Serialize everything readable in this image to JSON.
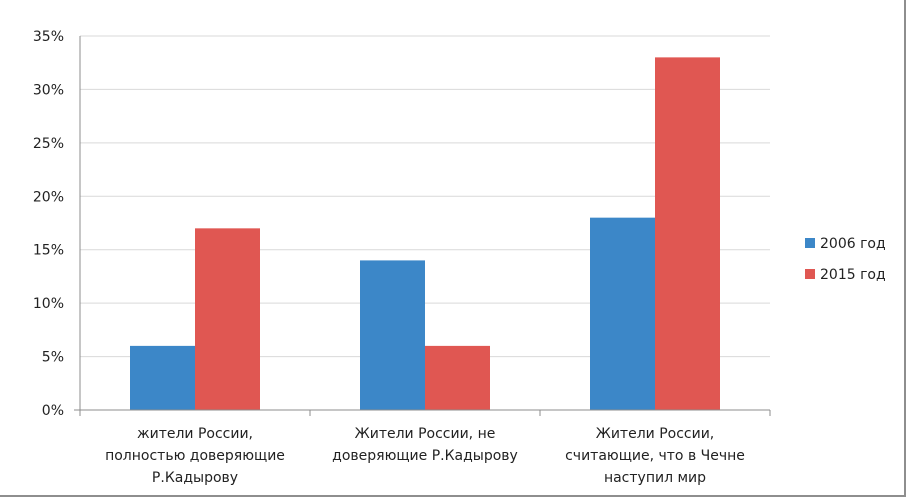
{
  "chart_data": {
    "type": "bar",
    "categories": [
      [
        "жители России,",
        "полностью доверяющие",
        "Р.Кадырову"
      ],
      [
        "Жители России, не",
        "доверяющие Р.Кадырову"
      ],
      [
        "Жители России,",
        "считающие, что в Чечне",
        "наступил мир"
      ]
    ],
    "series": [
      {
        "name": "2006 год",
        "values": [
          6,
          14,
          18
        ],
        "color": "#3c87c8"
      },
      {
        "name": "2015 год",
        "values": [
          17,
          6,
          33
        ],
        "color": "#e05752"
      }
    ],
    "ylim": [
      0,
      35
    ],
    "yticks": [
      0,
      5,
      10,
      15,
      20,
      25,
      30,
      35
    ],
    "ytick_labels": [
      "0%",
      "5%",
      "10%",
      "15%",
      "20%",
      "25%",
      "30%",
      "35%"
    ],
    "grid": true,
    "legend": "right"
  }
}
